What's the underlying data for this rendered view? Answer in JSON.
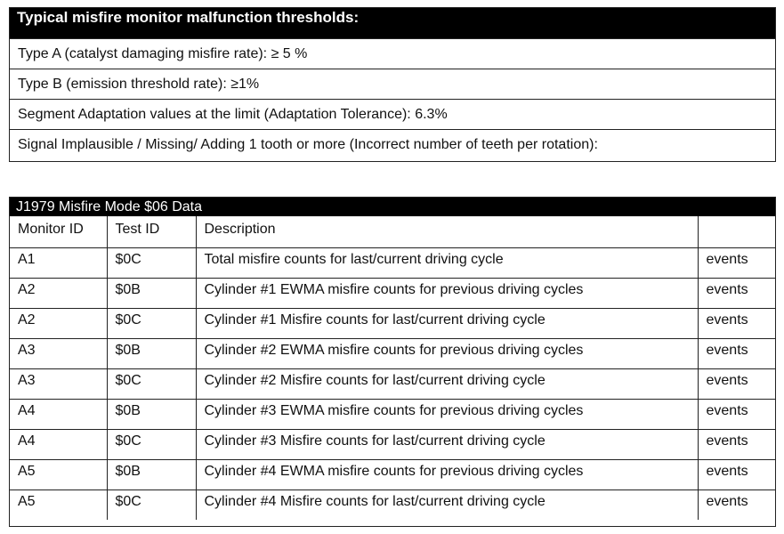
{
  "thresholds": {
    "title": "Typical misfire monitor malfunction thresholds:",
    "rows": [
      "Type A (catalyst damaging misfire rate): ≥ 5 %",
      "Type B (emission threshold rate): ≥1%",
      "Segment Adaptation values at the limit (Adaptation Tolerance): 6.3%",
      "Signal Implausible / Missing/ Adding 1 tooth or more (Incorrect number of teeth per rotation):"
    ]
  },
  "mode06": {
    "title": "J1979 Misfire Mode $06 Data",
    "headers": [
      "Monitor ID",
      "Test ID",
      "Description",
      ""
    ],
    "rows": [
      [
        "A1",
        "$0C",
        "Total misfire counts for last/current driving cycle",
        "events"
      ],
      [
        "A2",
        "$0B",
        "Cylinder #1 EWMA misfire counts for previous driving cycles",
        "events"
      ],
      [
        "A2",
        "$0C",
        "Cylinder #1 Misfire counts for last/current driving cycle",
        "events"
      ],
      [
        "A3",
        "$0B",
        "Cylinder #2 EWMA misfire counts for previous driving cycles",
        "events"
      ],
      [
        "A3",
        "$0C",
        "Cylinder #2 Misfire counts for last/current driving cycle",
        "events"
      ],
      [
        "A4",
        "$0B",
        "Cylinder #3 EWMA misfire counts for previous driving cycles",
        "events"
      ],
      [
        "A4",
        "$0C",
        "Cylinder #3 Misfire counts for last/current driving cycle",
        "events"
      ],
      [
        "A5",
        "$0B",
        "Cylinder #4 EWMA misfire counts for previous driving cycles",
        "events"
      ],
      [
        "A5",
        "$0C",
        "Cylinder #4 Misfire counts for last/current driving cycle",
        "events"
      ]
    ]
  }
}
